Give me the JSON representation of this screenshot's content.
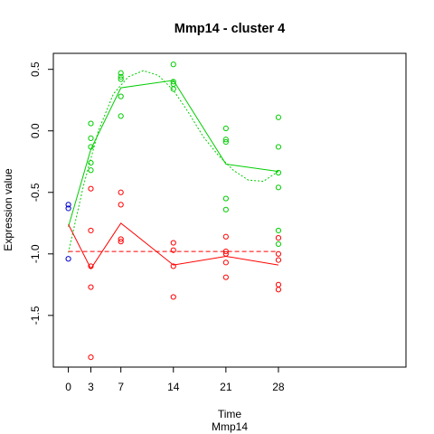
{
  "chart_data": {
    "type": "scatter",
    "title": "Mmp14 - cluster 4",
    "xlabel": "Time",
    "sublabel": "Mmp14",
    "ylabel": "Expression value",
    "xlim": [
      -2,
      45
    ],
    "ylim": [
      -1.92,
      0.63
    ],
    "x_ticks": [
      0,
      3,
      7,
      14,
      21,
      28
    ],
    "y_ticks": [
      -1.5,
      -1.0,
      -0.5,
      0.0,
      0.5
    ],
    "y_tick_labels": [
      "-1.5",
      "-1.0",
      "-0.5",
      "0.0",
      "0.5"
    ],
    "colors": {
      "green": "#00cd00",
      "red": "#ff0000",
      "blue": "#0000cd",
      "axis": "#000000"
    },
    "series": [
      {
        "color": "#00cd00",
        "points": [
          {
            "x": 3,
            "y": 0.06
          },
          {
            "x": 3,
            "y": -0.06
          },
          {
            "x": 3,
            "y": -0.13
          },
          {
            "x": 3,
            "y": -0.26
          },
          {
            "x": 3,
            "y": -0.32
          },
          {
            "x": 7,
            "y": 0.47
          },
          {
            "x": 7,
            "y": 0.44
          },
          {
            "x": 7,
            "y": 0.42
          },
          {
            "x": 7,
            "y": 0.28
          },
          {
            "x": 7,
            "y": 0.12
          },
          {
            "x": 14,
            "y": 0.54
          },
          {
            "x": 14,
            "y": 0.4
          },
          {
            "x": 14,
            "y": 0.38
          },
          {
            "x": 14,
            "y": 0.34
          },
          {
            "x": 21,
            "y": 0.02
          },
          {
            "x": 21,
            "y": -0.07
          },
          {
            "x": 21,
            "y": -0.09
          },
          {
            "x": 21,
            "y": -0.55
          },
          {
            "x": 21,
            "y": -0.64
          },
          {
            "x": 28,
            "y": 0.11
          },
          {
            "x": 28,
            "y": -0.13
          },
          {
            "x": 28,
            "y": -0.34
          },
          {
            "x": 28,
            "y": -0.46
          },
          {
            "x": 28,
            "y": -0.81
          },
          {
            "x": 28,
            "y": -0.92
          }
        ],
        "mean_line": [
          {
            "x": 0,
            "y": -0.78
          },
          {
            "x": 3,
            "y": -0.15
          },
          {
            "x": 7,
            "y": 0.35
          },
          {
            "x": 14,
            "y": 0.41
          },
          {
            "x": 21,
            "y": -0.27
          },
          {
            "x": 28,
            "y": -0.33
          }
        ],
        "fit_line": [
          {
            "x": 0,
            "y": -0.99
          },
          {
            "x": 2,
            "y": -0.45
          },
          {
            "x": 4,
            "y": 0.0
          },
          {
            "x": 6,
            "y": 0.3
          },
          {
            "x": 8,
            "y": 0.44
          },
          {
            "x": 10,
            "y": 0.49
          },
          {
            "x": 12,
            "y": 0.45
          },
          {
            "x": 14,
            "y": 0.33
          },
          {
            "x": 16,
            "y": 0.15
          },
          {
            "x": 18,
            "y": -0.05
          },
          {
            "x": 20,
            "y": -0.2
          },
          {
            "x": 22,
            "y": -0.32
          },
          {
            "x": 24,
            "y": -0.4
          },
          {
            "x": 26,
            "y": -0.41
          },
          {
            "x": 28,
            "y": -0.33
          }
        ]
      },
      {
        "color": "#ff0000",
        "points": [
          {
            "x": 3,
            "y": -0.47
          },
          {
            "x": 3,
            "y": -0.81
          },
          {
            "x": 3,
            "y": -1.1
          },
          {
            "x": 3,
            "y": -1.27
          },
          {
            "x": 3,
            "y": -1.84
          },
          {
            "x": 7,
            "y": -0.5
          },
          {
            "x": 7,
            "y": -0.6
          },
          {
            "x": 7,
            "y": -0.88
          },
          {
            "x": 7,
            "y": -0.9
          },
          {
            "x": 14,
            "y": -0.91
          },
          {
            "x": 14,
            "y": -0.97
          },
          {
            "x": 14,
            "y": -1.1
          },
          {
            "x": 14,
            "y": -1.35
          },
          {
            "x": 21,
            "y": -0.86
          },
          {
            "x": 21,
            "y": -0.98
          },
          {
            "x": 21,
            "y": -1.0
          },
          {
            "x": 21,
            "y": -1.07
          },
          {
            "x": 21,
            "y": -1.19
          },
          {
            "x": 28,
            "y": -1.0
          },
          {
            "x": 28,
            "y": -1.05
          },
          {
            "x": 28,
            "y": -1.25
          },
          {
            "x": 28,
            "y": -1.29
          },
          {
            "x": 28,
            "y": -0.87
          }
        ],
        "mean_line": [
          {
            "x": 0,
            "y": -0.76
          },
          {
            "x": 3,
            "y": -1.12
          },
          {
            "x": 7,
            "y": -0.75
          },
          {
            "x": 14,
            "y": -1.09
          },
          {
            "x": 21,
            "y": -1.02
          },
          {
            "x": 28,
            "y": -1.09
          }
        ],
        "fit_line": [
          {
            "x": 0,
            "y": -0.98
          },
          {
            "x": 28,
            "y": -0.98
          }
        ]
      },
      {
        "color": "#0000cd",
        "points": [
          {
            "x": 0,
            "y": -0.6
          },
          {
            "x": 0,
            "y": -0.63
          },
          {
            "x": 0,
            "y": -1.04
          }
        ]
      }
    ]
  }
}
